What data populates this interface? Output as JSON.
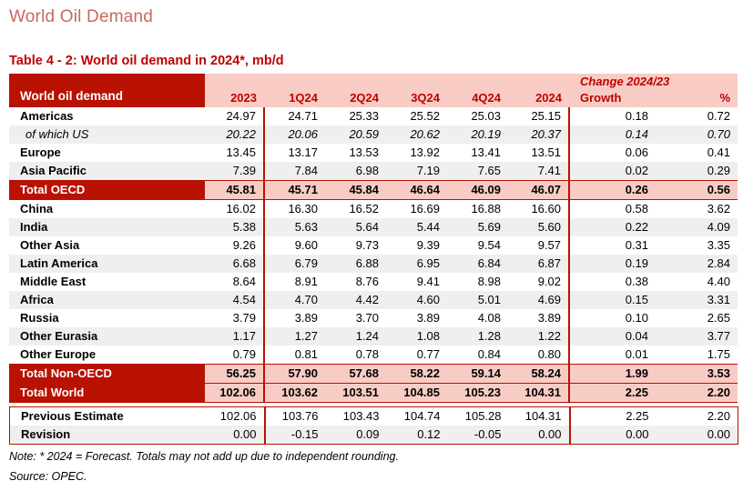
{
  "page": {
    "title": "World Oil Demand"
  },
  "table": {
    "caption": "Table 4 - 2: World oil demand in 2024*, mb/d",
    "header": {
      "label": "World oil demand",
      "change_label": "Change 2024/23",
      "columns": [
        "2023",
        "1Q24",
        "2Q24",
        "3Q24",
        "4Q24",
        "2024"
      ],
      "growth_label": "Growth",
      "percent_label": "%"
    },
    "rows": [
      {
        "label": "Americas",
        "type": "plain",
        "values": [
          "24.97",
          "24.71",
          "25.33",
          "25.52",
          "25.03",
          "25.15",
          "0.18",
          "0.72"
        ]
      },
      {
        "label": "of which US",
        "type": "sub",
        "values": [
          "20.22",
          "20.06",
          "20.59",
          "20.62",
          "20.19",
          "20.37",
          "0.14",
          "0.70"
        ]
      },
      {
        "label": "Europe",
        "type": "plain",
        "values": [
          "13.45",
          "13.17",
          "13.53",
          "13.92",
          "13.41",
          "13.51",
          "0.06",
          "0.41"
        ]
      },
      {
        "label": "Asia Pacific",
        "type": "shaded",
        "values": [
          "7.39",
          "7.84",
          "6.98",
          "7.19",
          "7.65",
          "7.41",
          "0.02",
          "0.29"
        ]
      },
      {
        "label": "Total OECD",
        "type": "total",
        "values": [
          "45.81",
          "45.71",
          "45.84",
          "46.64",
          "46.09",
          "46.07",
          "0.26",
          "0.56"
        ]
      },
      {
        "label": "China",
        "type": "plain",
        "values": [
          "16.02",
          "16.30",
          "16.52",
          "16.69",
          "16.88",
          "16.60",
          "0.58",
          "3.62"
        ]
      },
      {
        "label": "India",
        "type": "shaded",
        "values": [
          "5.38",
          "5.63",
          "5.64",
          "5.44",
          "5.69",
          "5.60",
          "0.22",
          "4.09"
        ]
      },
      {
        "label": "Other Asia",
        "type": "plain",
        "values": [
          "9.26",
          "9.60",
          "9.73",
          "9.39",
          "9.54",
          "9.57",
          "0.31",
          "3.35"
        ]
      },
      {
        "label": "Latin America",
        "type": "shaded",
        "values": [
          "6.68",
          "6.79",
          "6.88",
          "6.95",
          "6.84",
          "6.87",
          "0.19",
          "2.84"
        ]
      },
      {
        "label": "Middle East",
        "type": "plain",
        "values": [
          "8.64",
          "8.91",
          "8.76",
          "9.41",
          "8.98",
          "9.02",
          "0.38",
          "4.40"
        ]
      },
      {
        "label": "Africa",
        "type": "shaded",
        "values": [
          "4.54",
          "4.70",
          "4.42",
          "4.60",
          "5.01",
          "4.69",
          "0.15",
          "3.31"
        ]
      },
      {
        "label": "Russia",
        "type": "plain",
        "values": [
          "3.79",
          "3.89",
          "3.70",
          "3.89",
          "4.08",
          "3.89",
          "0.10",
          "2.65"
        ]
      },
      {
        "label": "Other Eurasia",
        "type": "shaded",
        "values": [
          "1.17",
          "1.27",
          "1.24",
          "1.08",
          "1.28",
          "1.22",
          "0.04",
          "3.77"
        ]
      },
      {
        "label": "Other Europe",
        "type": "plain",
        "values": [
          "0.79",
          "0.81",
          "0.78",
          "0.77",
          "0.84",
          "0.80",
          "0.01",
          "1.75"
        ]
      },
      {
        "label": "Total Non-OECD",
        "type": "total",
        "values": [
          "56.25",
          "57.90",
          "57.68",
          "58.22",
          "59.14",
          "58.24",
          "1.99",
          "3.53"
        ]
      },
      {
        "label": "Total World",
        "type": "total",
        "values": [
          "102.06",
          "103.62",
          "103.51",
          "104.85",
          "105.23",
          "104.31",
          "2.25",
          "2.20"
        ]
      }
    ],
    "footer_rows": [
      {
        "label": "Previous Estimate",
        "type": "plain",
        "values": [
          "102.06",
          "103.76",
          "103.43",
          "104.74",
          "105.28",
          "104.31",
          "2.25",
          "2.20"
        ]
      },
      {
        "label": "Revision",
        "type": "shaded",
        "values": [
          "0.00",
          "-0.15",
          "0.09",
          "0.12",
          "-0.05",
          "0.00",
          "0.00",
          "0.00"
        ]
      }
    ]
  },
  "notes": {
    "note": "Note: * 2024 = Forecast. Totals may not add up due to independent rounding.",
    "source": "Source: OPEC."
  },
  "colors": {
    "dark_red": "#B91102",
    "header_text_red": "#C00000",
    "pink": "#F8CCC4",
    "shaded_gray": "#EFEFEF",
    "title_color": "#C9695F"
  }
}
